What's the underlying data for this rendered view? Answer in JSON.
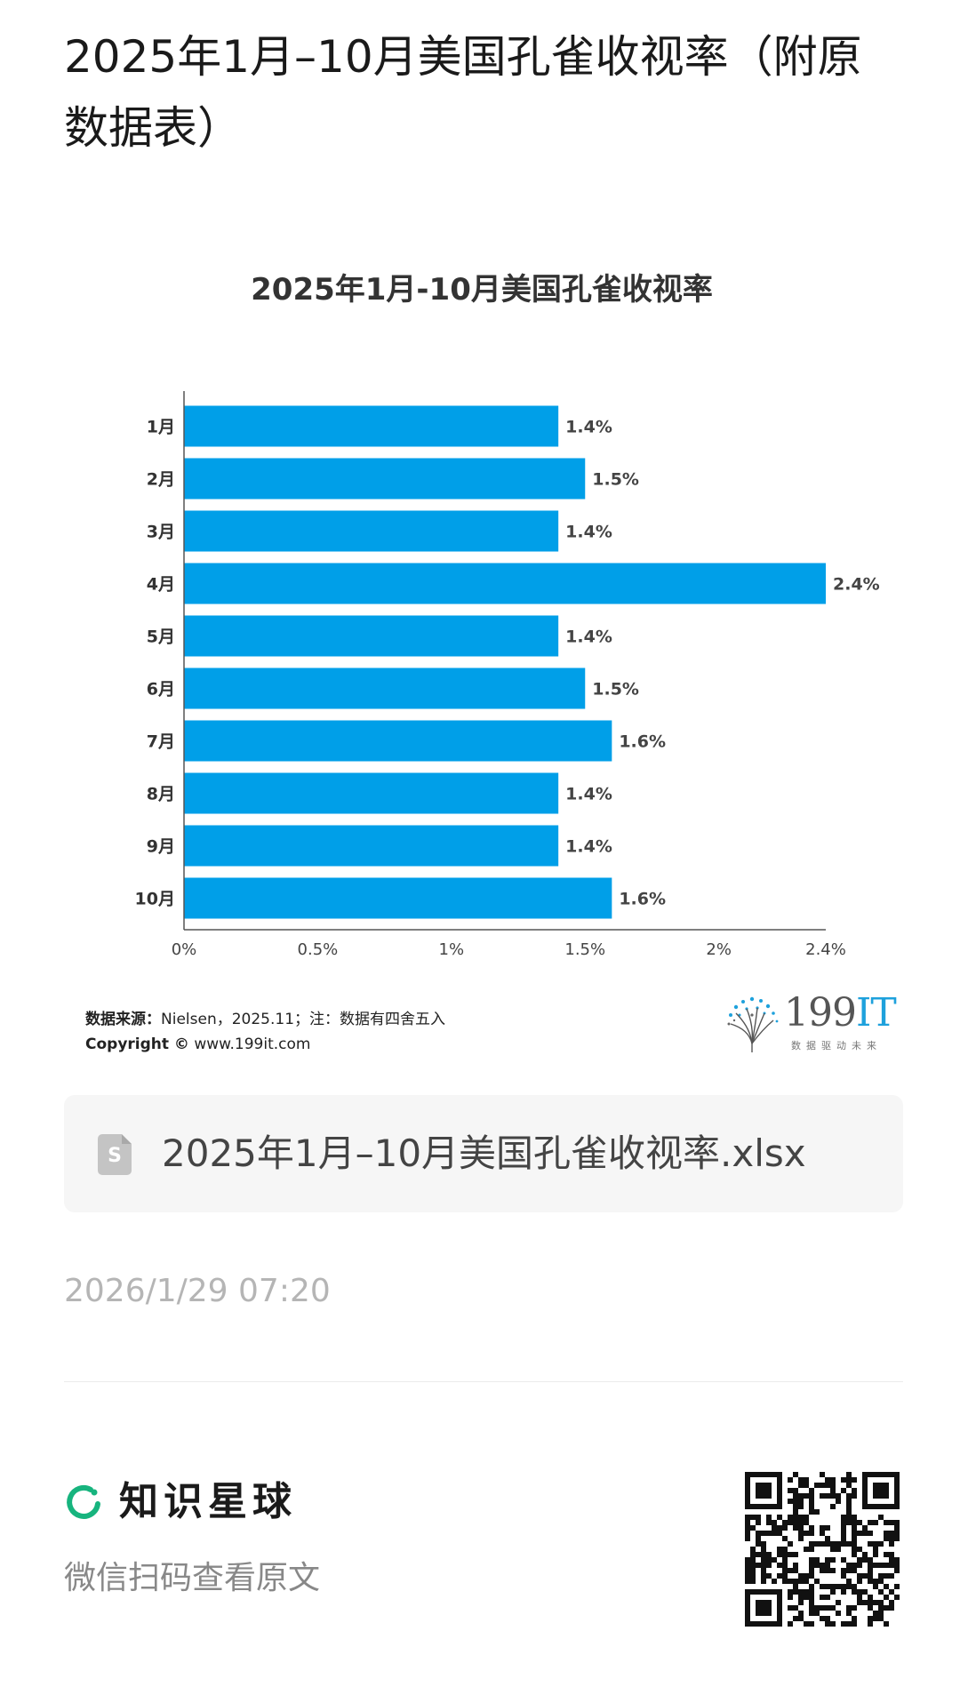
{
  "page": {
    "title": "2025年1月–10月美国孔雀收视率（附原数据表）"
  },
  "chart_data": {
    "type": "bar",
    "orientation": "horizontal",
    "title": "2025年1月-10月美国孔雀收视率",
    "categories": [
      "1月",
      "2月",
      "3月",
      "4月",
      "5月",
      "6月",
      "7月",
      "8月",
      "9月",
      "10月"
    ],
    "values": [
      1.4,
      1.5,
      1.4,
      2.4,
      1.4,
      1.5,
      1.6,
      1.4,
      1.4,
      1.6
    ],
    "value_labels": [
      "1.4%",
      "1.5%",
      "1.4%",
      "2.4%",
      "1.4%",
      "1.5%",
      "1.6%",
      "1.4%",
      "1.4%",
      "1.6%"
    ],
    "x_ticks": [
      0,
      0.5,
      1,
      1.5,
      2,
      2.4
    ],
    "x_tick_labels": [
      "0%",
      "0.5%",
      "1%",
      "1.5%",
      "2%",
      "2.4%"
    ],
    "xlim": [
      0,
      2.4
    ],
    "xlabel": "",
    "ylabel": "",
    "grid": false,
    "legend": "none",
    "bar_color": "#009fe8"
  },
  "source": {
    "label": "数据来源：",
    "text": "Nielsen，2025.11；注：数据有四舍五入",
    "copyright_label": "Copyright ©",
    "copyright_site": "www.199it.com"
  },
  "logo": {
    "num": "199",
    "it": "IT",
    "tagline": "数据驱动未来"
  },
  "attachment": {
    "icon": "spreadsheet-file-icon",
    "icon_letter": "S",
    "filename": "2025年1月–10月美国孔雀收视率.xlsx"
  },
  "meta": {
    "time": "2026/1/29 07:20"
  },
  "footer": {
    "brand": "知识星球",
    "brand_icon": "zsxq-logo-icon",
    "brand_color": "#17b47e",
    "scan_hint": "微信扫码查看原文",
    "qr_icon": "qr-code-icon"
  }
}
